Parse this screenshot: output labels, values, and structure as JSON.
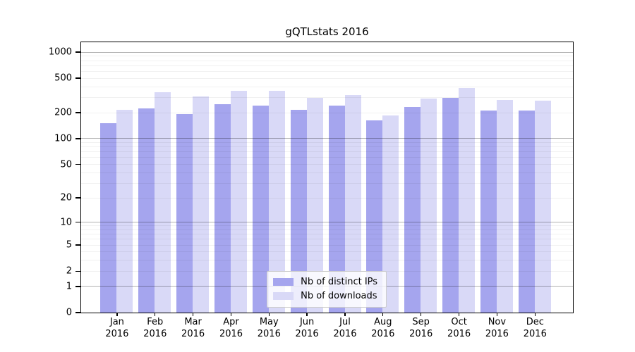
{
  "chart_data": {
    "type": "bar",
    "title": "gQTLstats 2016",
    "categories": [
      "Jan 2016",
      "Feb 2016",
      "Mar 2016",
      "Apr 2016",
      "May 2016",
      "Jun 2016",
      "Jul 2016",
      "Aug 2016",
      "Sep 2016",
      "Oct 2016",
      "Nov 2016",
      "Dec 2016"
    ],
    "series": [
      {
        "name": "Nb of distinct IPs",
        "color": "#a5a5ee",
        "values": [
          150,
          221,
          190,
          251,
          239,
          214,
          240,
          163,
          232,
          292,
          209,
          209
        ]
      },
      {
        "name": "Nb of downloads",
        "color": "#d9d9f7",
        "values": [
          213,
          345,
          307,
          354,
          358,
          293,
          317,
          183,
          289,
          386,
          280,
          272
        ]
      }
    ],
    "yscale": "log1p",
    "ylim": [
      0,
      1300
    ],
    "yticks": [
      0,
      1,
      2,
      5,
      10,
      20,
      50,
      100,
      200,
      500,
      1000
    ],
    "grid_major": [
      1,
      10,
      100,
      1000
    ],
    "grid_minor": [
      2,
      3,
      4,
      5,
      6,
      7,
      8,
      9,
      20,
      30,
      40,
      50,
      60,
      70,
      80,
      90,
      200,
      300,
      400,
      500,
      600,
      700,
      800,
      900
    ],
    "legend_position": "lower center",
    "grid_on": true,
    "xlabel": "",
    "ylabel": ""
  },
  "colors": {
    "background": "#ffffff",
    "frame": "#000000",
    "bar_distinct_ips": "#a5a5ee",
    "bar_downloads": "#d9d9f7",
    "grid_major": "#b3b3b3",
    "grid_minor": "#f0f0f0",
    "text": "#000000"
  }
}
